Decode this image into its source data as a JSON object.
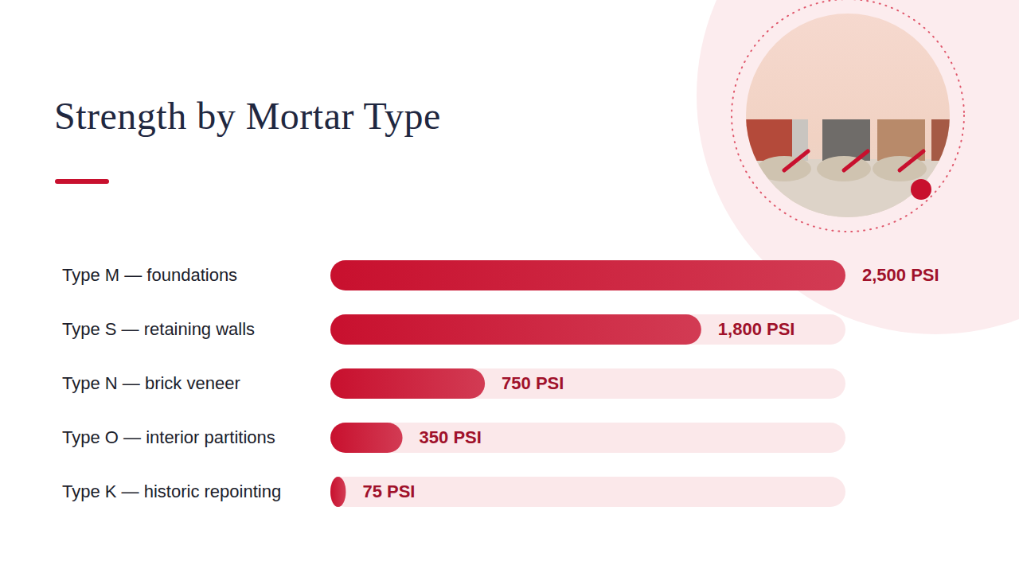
{
  "chart_data": {
    "type": "bar",
    "title": "Strength by Mortar Type",
    "categories": [
      "Type M — foundations",
      "Type S — retaining walls",
      "Type N — brick veneer",
      "Type O — interior partitions",
      "Type K — historic repointing"
    ],
    "values": [
      2500,
      1800,
      750,
      350,
      75
    ],
    "value_labels": [
      "2,500 PSI",
      "1,800 PSI",
      "750 PSI",
      "350 PSI",
      "75 PSI"
    ],
    "color": "#c8102e",
    "xlim": [
      0,
      2500
    ],
    "orientation": "horizontal",
    "data_labels": true,
    "tick_labels": false,
    "grid": false
  }
}
